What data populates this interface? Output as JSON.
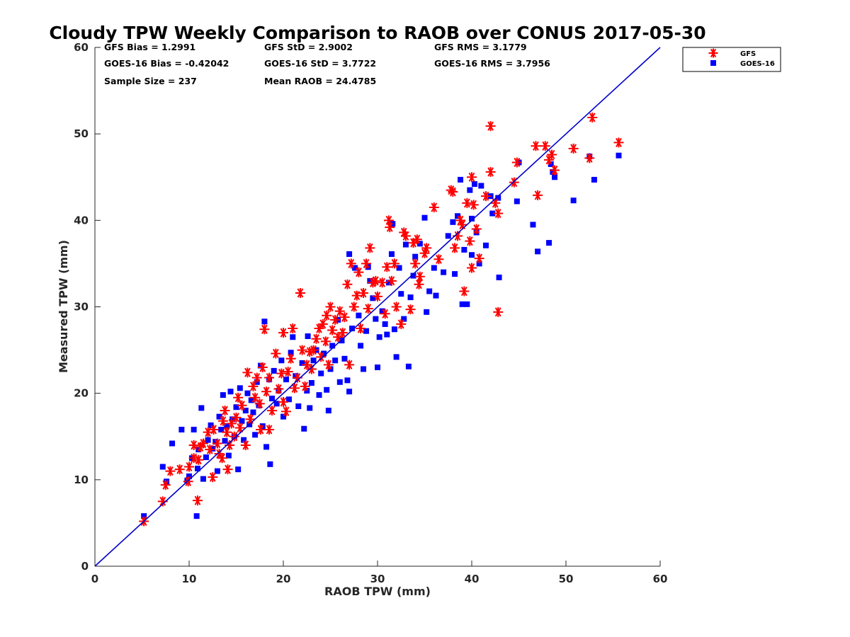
{
  "chart_data": {
    "type": "scatter",
    "title": "Cloudy TPW Weekly Comparison to RAOB over CONUS 2017-05-30",
    "xlabel": "RAOB TPW (mm)",
    "ylabel": "Measured TPW (mm)",
    "xlim": [
      0,
      60
    ],
    "ylim": [
      0,
      60
    ],
    "xticks": [
      0,
      10,
      20,
      30,
      40,
      50,
      60
    ],
    "yticks": [
      0,
      10,
      20,
      30,
      40,
      50,
      60
    ],
    "grid": false,
    "legend_position": "top-right, outside plot",
    "one_to_one_line": {
      "from": [
        0,
        0
      ],
      "to": [
        60,
        60
      ],
      "color": "#0000cc"
    },
    "stats": [
      "GFS Bias = 1.2991",
      "GFS StD = 2.9002",
      "GFS RMS = 3.1779",
      "GOES-16 Bias = -0.42042",
      "GOES-16 StD = 3.7722",
      "GOES-16 RMS = 3.7956",
      "Sample Size = 237",
      "Mean RAOB = 24.4785"
    ],
    "series": [
      {
        "name": "GFS",
        "marker": "asterisk",
        "color": "#ff0000",
        "points": [
          [
            5.2,
            5.2
          ],
          [
            7.2,
            7.5
          ],
          [
            7.5,
            9.4
          ],
          [
            8.0,
            11.0
          ],
          [
            9.0,
            11.2
          ],
          [
            9.9,
            9.8
          ],
          [
            10.0,
            11.5
          ],
          [
            10.5,
            12.5
          ],
          [
            10.5,
            14.0
          ],
          [
            10.9,
            7.6
          ],
          [
            11.0,
            12.3
          ],
          [
            11.2,
            13.8
          ],
          [
            11.5,
            14.2
          ],
          [
            12.0,
            15.5
          ],
          [
            12.2,
            13.5
          ],
          [
            12.5,
            10.3
          ],
          [
            12.6,
            15.8
          ],
          [
            13.0,
            14.2
          ],
          [
            13.2,
            13.0
          ],
          [
            13.5,
            12.5
          ],
          [
            13.6,
            16.8
          ],
          [
            13.8,
            18.0
          ],
          [
            14.0,
            15.5
          ],
          [
            14.1,
            11.2
          ],
          [
            14.3,
            14.0
          ],
          [
            14.5,
            16.5
          ],
          [
            14.8,
            15.0
          ],
          [
            15.0,
            17.2
          ],
          [
            15.2,
            19.5
          ],
          [
            15.4,
            16.0
          ],
          [
            15.6,
            18.6
          ],
          [
            16.0,
            14.0
          ],
          [
            16.2,
            22.4
          ],
          [
            16.5,
            17.0
          ],
          [
            16.8,
            20.8
          ],
          [
            17.0,
            19.5
          ],
          [
            17.2,
            21.8
          ],
          [
            17.5,
            18.8
          ],
          [
            17.6,
            15.8
          ],
          [
            17.8,
            23.0
          ],
          [
            18.0,
            27.4
          ],
          [
            18.2,
            20.2
          ],
          [
            18.5,
            15.8
          ],
          [
            18.5,
            21.8
          ],
          [
            18.8,
            18.0
          ],
          [
            19.2,
            24.6
          ],
          [
            19.5,
            20.5
          ],
          [
            19.8,
            22.3
          ],
          [
            20.0,
            27.0
          ],
          [
            20.0,
            19.0
          ],
          [
            20.3,
            17.9
          ],
          [
            20.5,
            22.5
          ],
          [
            20.8,
            24.0
          ],
          [
            21.0,
            27.5
          ],
          [
            21.2,
            20.6
          ],
          [
            21.5,
            21.8
          ],
          [
            21.8,
            31.6
          ],
          [
            22.0,
            25.0
          ],
          [
            22.3,
            20.8
          ],
          [
            22.5,
            23.3
          ],
          [
            22.8,
            24.8
          ],
          [
            23.0,
            22.8
          ],
          [
            23.2,
            25.0
          ],
          [
            23.5,
            26.3
          ],
          [
            23.8,
            27.5
          ],
          [
            24.0,
            24.2
          ],
          [
            24.2,
            28.0
          ],
          [
            24.5,
            26.0
          ],
          [
            24.6,
            29.0
          ],
          [
            24.8,
            23.3
          ],
          [
            25.0,
            30.0
          ],
          [
            25.2,
            27.3
          ],
          [
            25.5,
            28.5
          ],
          [
            25.8,
            26.5
          ],
          [
            26.0,
            29.5
          ],
          [
            26.3,
            27.0
          ],
          [
            26.5,
            28.8
          ],
          [
            26.8,
            32.6
          ],
          [
            27.0,
            23.3
          ],
          [
            27.2,
            35.0
          ],
          [
            27.5,
            30.0
          ],
          [
            27.8,
            31.3
          ],
          [
            28.0,
            34.0
          ],
          [
            28.2,
            27.5
          ],
          [
            28.5,
            31.6
          ],
          [
            28.8,
            35.0
          ],
          [
            29.0,
            29.8
          ],
          [
            29.2,
            36.8
          ],
          [
            29.5,
            32.8
          ],
          [
            29.8,
            33.0
          ],
          [
            30.0,
            31.2
          ],
          [
            30.5,
            32.8
          ],
          [
            30.8,
            29.2
          ],
          [
            31.0,
            34.6
          ],
          [
            31.2,
            40.0
          ],
          [
            31.3,
            39.2
          ],
          [
            31.5,
            33.0
          ],
          [
            31.8,
            35.0
          ],
          [
            32.0,
            30.0
          ],
          [
            32.5,
            28.0
          ],
          [
            32.8,
            38.6
          ],
          [
            33.0,
            38.2
          ],
          [
            33.5,
            29.7
          ],
          [
            33.8,
            37.4
          ],
          [
            34.0,
            35.0
          ],
          [
            34.2,
            37.8
          ],
          [
            34.4,
            32.6
          ],
          [
            34.5,
            33.5
          ],
          [
            35.0,
            36.2
          ],
          [
            35.2,
            36.8
          ],
          [
            36.0,
            41.5
          ],
          [
            36.5,
            35.5
          ],
          [
            37.8,
            43.5
          ],
          [
            38.0,
            43.3
          ],
          [
            38.2,
            36.8
          ],
          [
            38.5,
            38.2
          ],
          [
            38.8,
            40.0
          ],
          [
            39.0,
            39.5
          ],
          [
            39.2,
            31.8
          ],
          [
            39.5,
            42.0
          ],
          [
            39.8,
            37.6
          ],
          [
            40.0,
            34.5
          ],
          [
            40.0,
            45.0
          ],
          [
            40.2,
            41.8
          ],
          [
            40.5,
            39.0
          ],
          [
            40.8,
            35.6
          ],
          [
            41.5,
            42.8
          ],
          [
            42.0,
            45.6
          ],
          [
            42.0,
            50.9
          ],
          [
            42.5,
            42.0
          ],
          [
            42.8,
            29.4
          ],
          [
            42.8,
            40.8
          ],
          [
            44.5,
            44.4
          ],
          [
            44.8,
            46.7
          ],
          [
            46.8,
            48.6
          ],
          [
            47.0,
            42.9
          ],
          [
            47.8,
            48.6
          ],
          [
            48.2,
            47.0
          ],
          [
            48.5,
            47.6
          ],
          [
            48.8,
            45.8
          ],
          [
            50.8,
            48.3
          ],
          [
            52.5,
            47.2
          ],
          [
            52.8,
            51.9
          ],
          [
            55.6,
            49.0
          ]
        ]
      },
      {
        "name": "GOES-16",
        "marker": "square",
        "color": "#0000ff",
        "points": [
          [
            5.2,
            5.8
          ],
          [
            7.2,
            11.5
          ],
          [
            7.6,
            9.8
          ],
          [
            8.2,
            14.2
          ],
          [
            9.2,
            15.8
          ],
          [
            9.8,
            9.9
          ],
          [
            10.0,
            10.4
          ],
          [
            10.3,
            12.5
          ],
          [
            10.5,
            15.8
          ],
          [
            10.8,
            5.8
          ],
          [
            10.9,
            11.3
          ],
          [
            11.0,
            13.5
          ],
          [
            11.3,
            18.3
          ],
          [
            11.5,
            10.1
          ],
          [
            11.8,
            12.6
          ],
          [
            12.0,
            14.6
          ],
          [
            12.3,
            16.3
          ],
          [
            12.5,
            13.6
          ],
          [
            12.8,
            14.4
          ],
          [
            13.0,
            11.0
          ],
          [
            13.2,
            17.3
          ],
          [
            13.4,
            15.8
          ],
          [
            13.6,
            19.8
          ],
          [
            13.8,
            14.5
          ],
          [
            14.0,
            16.2
          ],
          [
            14.2,
            12.8
          ],
          [
            14.4,
            20.2
          ],
          [
            14.6,
            17.0
          ],
          [
            14.8,
            15.0
          ],
          [
            15.0,
            18.4
          ],
          [
            15.2,
            11.2
          ],
          [
            15.4,
            20.6
          ],
          [
            15.6,
            16.8
          ],
          [
            15.8,
            14.6
          ],
          [
            16.0,
            18.0
          ],
          [
            16.2,
            20.0
          ],
          [
            16.4,
            16.4
          ],
          [
            16.6,
            19.2
          ],
          [
            16.8,
            17.8
          ],
          [
            17.0,
            15.2
          ],
          [
            17.2,
            21.3
          ],
          [
            17.4,
            18.6
          ],
          [
            17.6,
            23.2
          ],
          [
            17.8,
            16.2
          ],
          [
            18.0,
            28.3
          ],
          [
            18.2,
            13.8
          ],
          [
            18.5,
            21.6
          ],
          [
            18.6,
            11.8
          ],
          [
            18.8,
            19.4
          ],
          [
            19.0,
            22.6
          ],
          [
            19.3,
            18.8
          ],
          [
            19.5,
            20.3
          ],
          [
            19.8,
            23.8
          ],
          [
            20.0,
            17.3
          ],
          [
            20.3,
            21.6
          ],
          [
            20.6,
            19.3
          ],
          [
            20.8,
            24.7
          ],
          [
            21.0,
            26.5
          ],
          [
            21.3,
            22.0
          ],
          [
            21.6,
            18.5
          ],
          [
            22.0,
            23.5
          ],
          [
            22.2,
            15.9
          ],
          [
            22.5,
            20.3
          ],
          [
            22.6,
            26.6
          ],
          [
            22.8,
            18.3
          ],
          [
            23.0,
            21.2
          ],
          [
            23.2,
            23.8
          ],
          [
            23.5,
            25.0
          ],
          [
            23.8,
            19.8
          ],
          [
            24.0,
            22.3
          ],
          [
            24.3,
            24.6
          ],
          [
            24.6,
            20.4
          ],
          [
            24.8,
            18.0
          ],
          [
            25.0,
            22.8
          ],
          [
            25.2,
            25.5
          ],
          [
            25.5,
            23.8
          ],
          [
            25.8,
            28.5
          ],
          [
            26.0,
            21.3
          ],
          [
            26.2,
            26.1
          ],
          [
            26.5,
            24.0
          ],
          [
            26.8,
            21.5
          ],
          [
            27.0,
            20.2
          ],
          [
            27.0,
            36.1
          ],
          [
            27.3,
            27.5
          ],
          [
            27.6,
            34.5
          ],
          [
            28.0,
            29.0
          ],
          [
            28.2,
            25.5
          ],
          [
            28.5,
            22.8
          ],
          [
            28.8,
            27.2
          ],
          [
            29.0,
            34.6
          ],
          [
            29.2,
            33.0
          ],
          [
            29.5,
            31.0
          ],
          [
            29.8,
            28.6
          ],
          [
            30.0,
            23.0
          ],
          [
            30.2,
            26.5
          ],
          [
            30.5,
            29.5
          ],
          [
            30.8,
            28.0
          ],
          [
            31.0,
            26.8
          ],
          [
            31.2,
            32.8
          ],
          [
            31.5,
            36.1
          ],
          [
            31.6,
            39.6
          ],
          [
            31.8,
            27.4
          ],
          [
            32.0,
            24.2
          ],
          [
            32.3,
            34.5
          ],
          [
            32.5,
            31.5
          ],
          [
            32.8,
            28.6
          ],
          [
            33.0,
            37.2
          ],
          [
            33.3,
            23.1
          ],
          [
            33.5,
            31.1
          ],
          [
            33.8,
            33.6
          ],
          [
            34.0,
            35.8
          ],
          [
            34.5,
            37.3
          ],
          [
            35.0,
            40.3
          ],
          [
            35.2,
            29.4
          ],
          [
            35.5,
            31.8
          ],
          [
            36.0,
            34.5
          ],
          [
            36.2,
            31.3
          ],
          [
            37.0,
            34.0
          ],
          [
            37.5,
            38.2
          ],
          [
            38.0,
            39.8
          ],
          [
            38.2,
            33.8
          ],
          [
            38.5,
            40.5
          ],
          [
            38.8,
            44.7
          ],
          [
            39.0,
            30.3
          ],
          [
            39.2,
            36.6
          ],
          [
            39.5,
            30.3
          ],
          [
            39.8,
            43.5
          ],
          [
            40.0,
            36.0
          ],
          [
            40.0,
            40.2
          ],
          [
            40.3,
            44.2
          ],
          [
            40.5,
            38.6
          ],
          [
            40.8,
            35.0
          ],
          [
            41.0,
            44.0
          ],
          [
            41.5,
            37.1
          ],
          [
            42.0,
            42.8
          ],
          [
            42.2,
            40.8
          ],
          [
            42.8,
            42.6
          ],
          [
            42.9,
            33.4
          ],
          [
            44.8,
            42.2
          ],
          [
            45.0,
            46.7
          ],
          [
            46.5,
            39.5
          ],
          [
            47.0,
            36.4
          ],
          [
            48.2,
            37.4
          ],
          [
            48.4,
            46.5
          ],
          [
            48.6,
            45.6
          ],
          [
            48.8,
            45.0
          ],
          [
            50.8,
            42.3
          ],
          [
            52.5,
            47.4
          ],
          [
            53.0,
            44.7
          ],
          [
            55.6,
            47.5
          ]
        ]
      }
    ]
  }
}
